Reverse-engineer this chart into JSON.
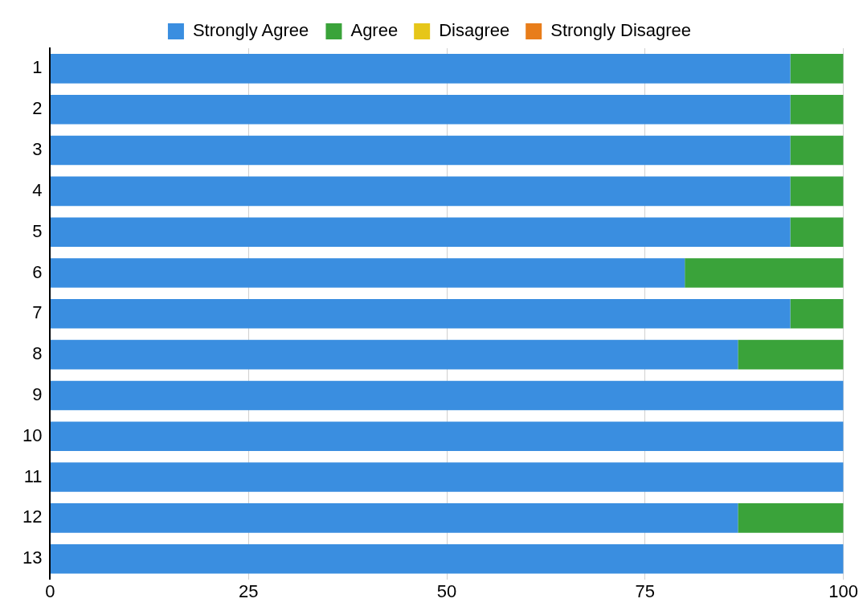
{
  "chart_data": {
    "type": "bar",
    "orientation": "horizontal",
    "stacked": true,
    "categories": [
      "1",
      "2",
      "3",
      "4",
      "5",
      "6",
      "7",
      "8",
      "9",
      "10",
      "11",
      "12",
      "13"
    ],
    "series": [
      {
        "name": "Strongly Agree",
        "color": "#3a8ee0",
        "values": [
          93.3,
          93.3,
          93.3,
          93.3,
          93.3,
          80,
          93.3,
          86.7,
          100,
          100,
          100,
          86.7,
          100
        ]
      },
      {
        "name": "Agree",
        "color": "#3aa33a",
        "values": [
          6.7,
          6.7,
          6.7,
          6.7,
          6.7,
          20,
          6.7,
          13.3,
          0,
          0,
          0,
          13.3,
          0
        ]
      },
      {
        "name": "Disagree",
        "color": "#e6c619",
        "values": [
          0,
          0,
          0,
          0,
          0,
          0,
          0,
          0,
          0,
          0,
          0,
          0,
          0
        ]
      },
      {
        "name": "Strongly Disagree",
        "color": "#e87d1a",
        "values": [
          0,
          0,
          0,
          0,
          0,
          0,
          0,
          0,
          0,
          0,
          0,
          0,
          0
        ]
      }
    ],
    "xlim": [
      0,
      100
    ],
    "xticks": [
      0,
      25,
      50,
      75,
      100
    ],
    "grid": "x",
    "legend": "top"
  }
}
